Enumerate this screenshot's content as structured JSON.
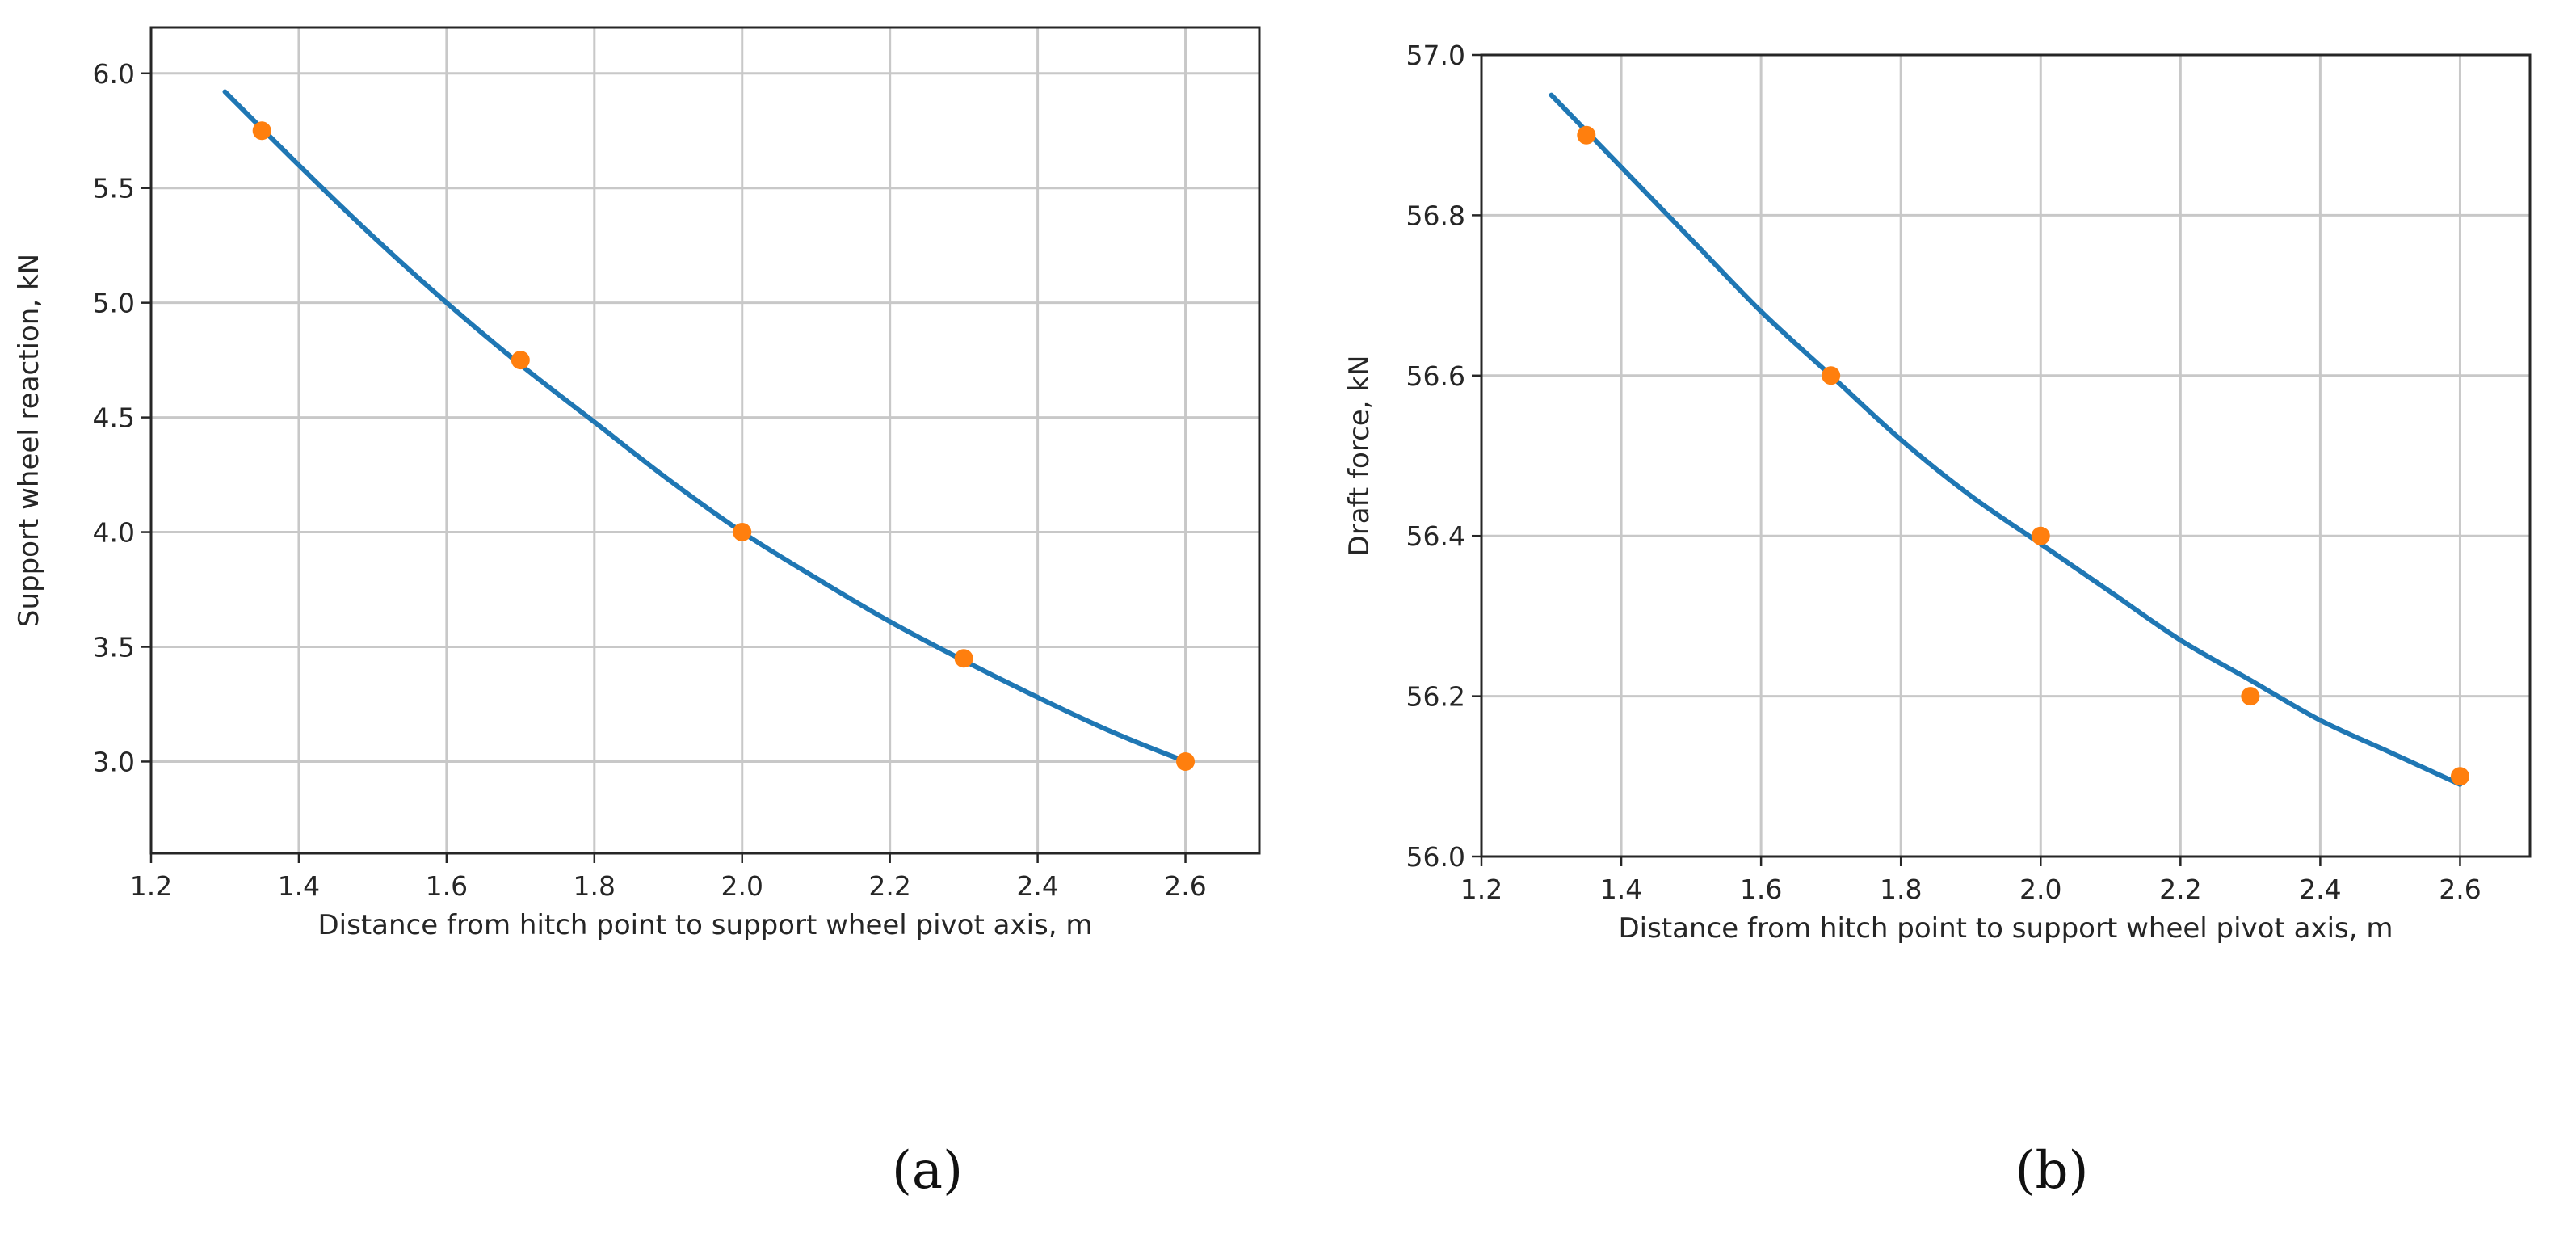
{
  "colors": {
    "curve": "#1f77b4",
    "points": "#ff7f0e",
    "grid": "#c8c8c8",
    "axes": "#262626"
  },
  "chart_data": [
    {
      "type": "line",
      "panel_label": "(a)",
      "title": "",
      "xlabel": "Distance from hitch point to support wheel pivot axis, m",
      "ylabel": "Support wheel reaction, kN",
      "xlim": [
        1.2,
        2.7
      ],
      "ylim": [
        2.6,
        6.2
      ],
      "x_ticks": [
        1.2,
        1.4,
        1.6,
        1.8,
        2.0,
        2.2,
        2.4,
        2.6
      ],
      "y_ticks": [
        3.0,
        3.5,
        4.0,
        4.5,
        5.0,
        5.5,
        6.0
      ],
      "x_tick_labels": [
        "1.2",
        "1.4",
        "1.6",
        "1.8",
        "2.0",
        "2.2",
        "2.4",
        "2.6"
      ],
      "y_tick_labels": [
        "3.0",
        "3.5",
        "4.0",
        "4.5",
        "5.0",
        "5.5",
        "6.0"
      ],
      "grid": true,
      "series": [
        {
          "kind": "curve",
          "x": [
            1.3,
            1.4,
            1.5,
            1.6,
            1.7,
            1.8,
            1.9,
            2.0,
            2.1,
            2.2,
            2.3,
            2.4,
            2.5,
            2.6
          ],
          "y": [
            5.92,
            5.6,
            5.29,
            5.0,
            4.73,
            4.48,
            4.23,
            4.0,
            3.8,
            3.61,
            3.44,
            3.28,
            3.13,
            3.0
          ]
        },
        {
          "kind": "points",
          "x": [
            1.35,
            1.7,
            2.0,
            2.3,
            2.6
          ],
          "y": [
            5.75,
            4.75,
            4.0,
            3.45,
            3.0
          ]
        }
      ]
    },
    {
      "type": "line",
      "panel_label": "(b)",
      "title": "",
      "xlabel": "Distance from hitch point to support wheel pivot axis, m",
      "ylabel": "Draft force, kN",
      "xlim": [
        1.2,
        2.7
      ],
      "ylim": [
        56.0,
        57.0
      ],
      "x_ticks": [
        1.2,
        1.4,
        1.6,
        1.8,
        2.0,
        2.2,
        2.4,
        2.6
      ],
      "y_ticks": [
        56.0,
        56.2,
        56.4,
        56.6,
        56.8,
        57.0
      ],
      "x_tick_labels": [
        "1.2",
        "1.4",
        "1.6",
        "1.8",
        "2.0",
        "2.2",
        "2.4",
        "2.6"
      ],
      "y_tick_labels": [
        "56.0",
        "56.2",
        "56.4",
        "56.6",
        "56.8",
        "57.0"
      ],
      "grid": true,
      "series": [
        {
          "kind": "curve",
          "x": [
            1.3,
            1.4,
            1.5,
            1.6,
            1.7,
            1.8,
            1.9,
            2.0,
            2.1,
            2.2,
            2.3,
            2.4,
            2.5,
            2.6
          ],
          "y": [
            56.95,
            56.86,
            56.77,
            56.68,
            56.6,
            56.52,
            56.45,
            56.39,
            56.33,
            56.27,
            56.22,
            56.17,
            56.13,
            56.09
          ]
        },
        {
          "kind": "points",
          "x": [
            1.35,
            1.7,
            2.0,
            2.3,
            2.6
          ],
          "y": [
            56.9,
            56.6,
            56.4,
            56.2,
            56.1
          ]
        }
      ]
    }
  ]
}
